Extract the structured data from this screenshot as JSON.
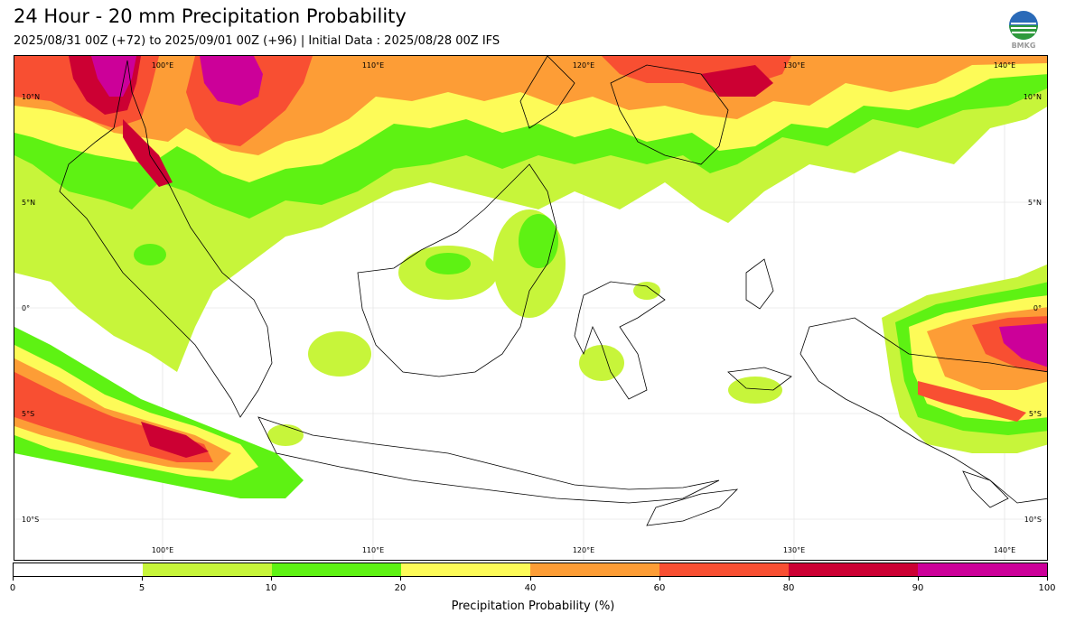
{
  "header": {
    "title": "24 Hour - 20 mm Precipitation Probability",
    "subtitle": "2025/08/31 00Z (+72) to 2025/09/01 00Z (+96) | Initial Data : 2025/08/28 00Z IFS",
    "logo_text": "BMKG"
  },
  "map": {
    "lon_labels": [
      "100°E",
      "110°E",
      "120°E",
      "130°E",
      "140°E"
    ],
    "lat_labels": [
      "10°N",
      "5°N",
      "0°",
      "5°S",
      "10°S"
    ]
  },
  "colorbar": {
    "label": "Precipitation Probability (%)",
    "ticks": [
      "0",
      "5",
      "10",
      "20",
      "40",
      "60",
      "80",
      "90",
      "100"
    ],
    "colors": [
      "#ffffff",
      "#c7f53a",
      "#5ef213",
      "#fdfb58",
      "#fd9d36",
      "#f84f32",
      "#cc0033",
      "#cc0099"
    ]
  }
}
